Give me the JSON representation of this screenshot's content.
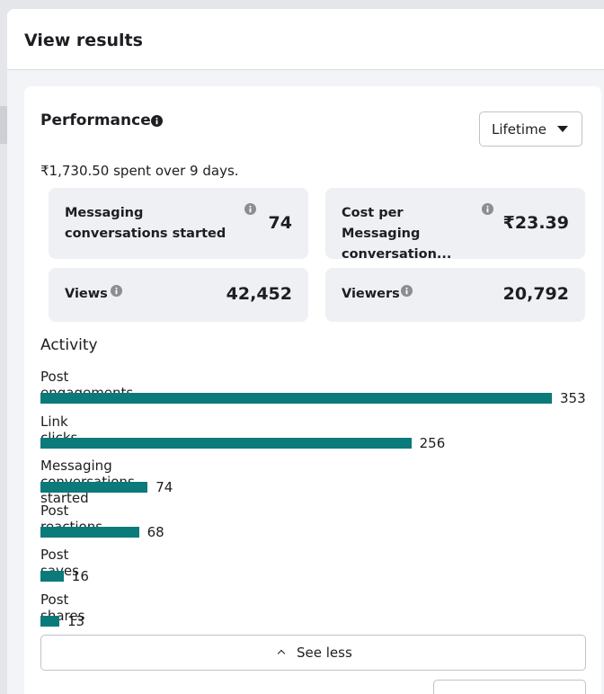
{
  "header": {
    "title": "View results"
  },
  "performance": {
    "title": "Performance",
    "period": "Lifetime",
    "summary": "₹1,730.50 spent over 9 days.",
    "metrics": [
      {
        "label": "Messaging conversations started",
        "value": "74"
      },
      {
        "label": "Cost per Messaging conversation...",
        "value": "₹23.39"
      },
      {
        "label": "Views",
        "value": "42,452"
      },
      {
        "label": "Viewers",
        "value": "20,792"
      }
    ]
  },
  "activity": {
    "title": "Activity",
    "color": "#0a7a7b",
    "items": [
      {
        "label": "Post engagements",
        "value": 353
      },
      {
        "label": "Link clicks",
        "value": 256
      },
      {
        "label": "Messaging conversations started",
        "value": 74
      },
      {
        "label": "Post reactions",
        "value": 68
      },
      {
        "label": "Post saves",
        "value": 16
      },
      {
        "label": "Post shares",
        "value": 13
      }
    ]
  },
  "buttons": {
    "toggle": "See less"
  }
}
